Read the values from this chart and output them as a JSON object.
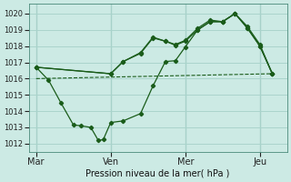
{
  "bg_color": "#cceae4",
  "grid_color": "#aad4cc",
  "line_color": "#1a5c1a",
  "marker_color": "#1a5c1a",
  "xlabel": "Pression niveau de la mer( hPa )",
  "ylim": [
    1011.5,
    1020.6
  ],
  "yticks": [
    1012,
    1013,
    1014,
    1015,
    1016,
    1017,
    1018,
    1019,
    1020
  ],
  "xtick_labels": [
    "Mar",
    "Ven",
    "Mer",
    "Jeu"
  ],
  "xtick_positions": [
    0.0,
    3.0,
    6.0,
    9.0
  ],
  "series_upper1": {
    "x": [
      0.0,
      3.0,
      3.5,
      4.2,
      4.7,
      5.2,
      5.6,
      6.0,
      6.5,
      7.0,
      7.5,
      8.0,
      8.5,
      9.0,
      9.5
    ],
    "y": [
      1016.7,
      1016.3,
      1017.05,
      1017.55,
      1018.5,
      1018.3,
      1018.05,
      1018.3,
      1019.0,
      1019.5,
      1019.5,
      1020.0,
      1019.1,
      1018.0,
      1016.3
    ]
  },
  "series_upper2": {
    "x": [
      0.0,
      3.0,
      3.5,
      4.2,
      4.7,
      5.2,
      5.6,
      6.0,
      6.5,
      7.0,
      7.5,
      8.0,
      8.5,
      9.0,
      9.5
    ],
    "y": [
      1016.7,
      1016.3,
      1017.05,
      1017.6,
      1018.55,
      1018.3,
      1018.1,
      1018.35,
      1019.1,
      1019.6,
      1019.5,
      1020.0,
      1019.2,
      1018.1,
      1016.3
    ]
  },
  "series_lower": {
    "x": [
      0.0,
      0.5,
      1.0,
      1.5,
      1.8,
      2.2,
      2.5,
      2.7,
      3.0,
      3.5,
      4.2,
      4.7,
      5.2,
      5.6,
      6.0,
      6.5,
      7.0,
      7.5,
      8.0,
      8.5,
      9.0,
      9.5
    ],
    "y": [
      1016.7,
      1015.9,
      1014.5,
      1013.15,
      1013.1,
      1013.0,
      1012.2,
      1012.25,
      1013.3,
      1013.4,
      1013.85,
      1015.55,
      1017.05,
      1017.1,
      1017.95,
      1019.0,
      1019.5,
      1019.5,
      1020.0,
      1019.1,
      1018.0,
      1016.3
    ]
  },
  "series_dashed": {
    "x": [
      0.0,
      9.5
    ],
    "y": [
      1016.0,
      1016.3
    ]
  }
}
